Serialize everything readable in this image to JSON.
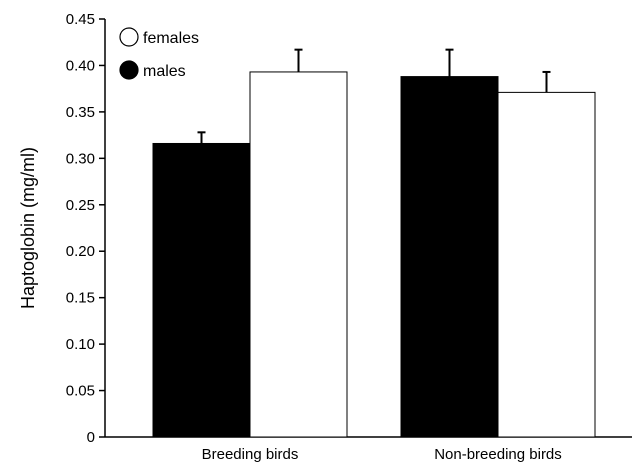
{
  "chart_data": {
    "type": "bar",
    "ylabel": "Haptoglobin (mg/ml)",
    "xlabel": "",
    "ylim": [
      0,
      0.45
    ],
    "yticks": [
      {
        "value": 0,
        "label": "0"
      },
      {
        "value": 0.05,
        "label": "0.05"
      },
      {
        "value": 0.1,
        "label": "0.10"
      },
      {
        "value": 0.15,
        "label": "0.15"
      },
      {
        "value": 0.2,
        "label": "0.20"
      },
      {
        "value": 0.25,
        "label": "0.25"
      },
      {
        "value": 0.3,
        "label": "0.30"
      },
      {
        "value": 0.35,
        "label": "0.35"
      },
      {
        "value": 0.4,
        "label": "0.40"
      },
      {
        "value": 0.45,
        "label": "0.45"
      }
    ],
    "categories": [
      "Breeding birds",
      "Non-breeding birds"
    ],
    "series": [
      {
        "name": "males",
        "color": "#000000",
        "values": [
          0.316,
          0.388
        ],
        "errors": [
          0.012,
          0.029
        ]
      },
      {
        "name": "females",
        "color": "#ffffff",
        "values": [
          0.393,
          0.371
        ],
        "errors": [
          0.024,
          0.022
        ]
      }
    ],
    "legend": {
      "position": "top-left",
      "order": [
        "females",
        "males"
      ],
      "entries": {
        "females": "females",
        "males": "males"
      }
    },
    "grid": false
  }
}
